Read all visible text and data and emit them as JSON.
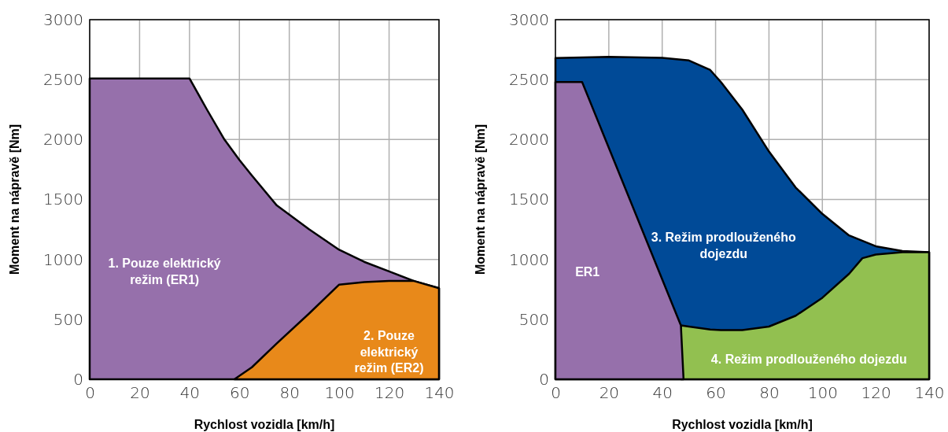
{
  "chart_data": [
    {
      "type": "area",
      "xlabel": "Rychlost vozidla [km/h]",
      "ylabel": "Moment na nápravě [Nm]",
      "xlim": [
        0,
        140
      ],
      "xticks": [
        0,
        20,
        40,
        60,
        80,
        100,
        120,
        140
      ],
      "ylim": [
        0,
        3000
      ],
      "yticks": [
        0,
        500,
        1000,
        1500,
        2000,
        2500,
        3000
      ],
      "grid": true,
      "legend": false,
      "series": [
        {
          "name": "1. Pouze elektrický režim (ER1)",
          "color": "#9670ab",
          "x": [
            0,
            20,
            40,
            47,
            54,
            60,
            65,
            75,
            88,
            100,
            110,
            120,
            130,
            140
          ],
          "values": [
            2510,
            2510,
            2510,
            2250,
            2000,
            1830,
            1700,
            1450,
            1250,
            1080,
            980,
            900,
            820,
            760
          ]
        },
        {
          "name": "2. Pouze elektrický režim (ER2)",
          "color": "#e8891a",
          "x": [
            58,
            65,
            75,
            88,
            100,
            110,
            120,
            130,
            140
          ],
          "values": [
            0,
            100,
            300,
            550,
            790,
            810,
            820,
            820,
            760
          ]
        }
      ]
    },
    {
      "type": "area",
      "xlabel": "Rychlost vozidla [km/h]",
      "ylabel": "Moment na nápravě [Nm]",
      "xlim": [
        0,
        140
      ],
      "xticks": [
        0,
        20,
        40,
        60,
        80,
        100,
        120,
        140
      ],
      "ylim": [
        0,
        3000
      ],
      "yticks": [
        0,
        500,
        1000,
        1500,
        2000,
        2500,
        3000
      ],
      "grid": true,
      "legend": false,
      "series": [
        {
          "name": "3. Režim prodlouženého dojezdu",
          "color": "#004a97",
          "x": [
            0,
            20,
            40,
            50,
            58,
            62,
            70,
            80,
            90,
            100,
            110,
            120,
            130,
            140
          ],
          "values": [
            2680,
            2690,
            2682,
            2660,
            2580,
            2480,
            2250,
            1900,
            1600,
            1380,
            1200,
            1110,
            1070,
            1060
          ]
        },
        {
          "name": "4. Režim prodlouženého dojezdu",
          "color": "#92c050",
          "x": [
            47,
            50,
            58,
            62,
            70,
            80,
            90,
            100,
            110,
            115,
            120,
            130,
            140
          ],
          "values": [
            450,
            440,
            415,
            410,
            410,
            440,
            530,
            680,
            880,
            1010,
            1040,
            1060,
            1060
          ]
        },
        {
          "name": "ER1",
          "color": "#9670ab",
          "x": [
            0,
            10,
            47,
            48
          ],
          "values": [
            2480,
            2480,
            450,
            0
          ]
        }
      ]
    }
  ]
}
